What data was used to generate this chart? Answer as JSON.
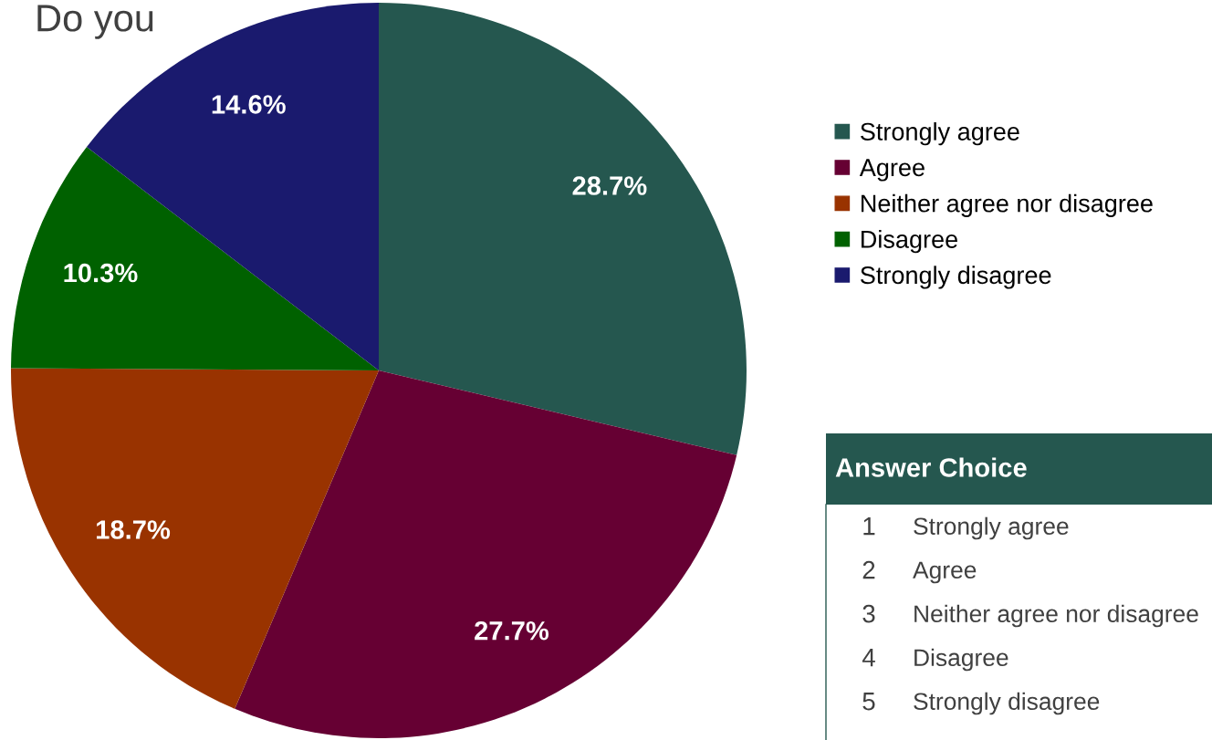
{
  "chart_data": {
    "type": "pie",
    "title": "Do you",
    "categories": [
      "Strongly agree",
      "Agree",
      "Neither agree nor disagree",
      "Disagree",
      "Strongly disagree"
    ],
    "values": [
      28.7,
      27.7,
      18.7,
      10.3,
      14.6
    ],
    "colors": [
      "#25574f",
      "#660033",
      "#993300",
      "#006100",
      "#1a1a6e"
    ],
    "value_labels": [
      "28.7%",
      "27.7%",
      "18.7%",
      "10.3%",
      "14.6%"
    ],
    "legend": "right",
    "annotations": [
      "Answer Choice",
      "1",
      "Strongly agree",
      "2",
      "Agree",
      "3",
      "Neither agree nor disagree",
      "4",
      "Disagree",
      "5",
      "Strongly disagree"
    ]
  }
}
